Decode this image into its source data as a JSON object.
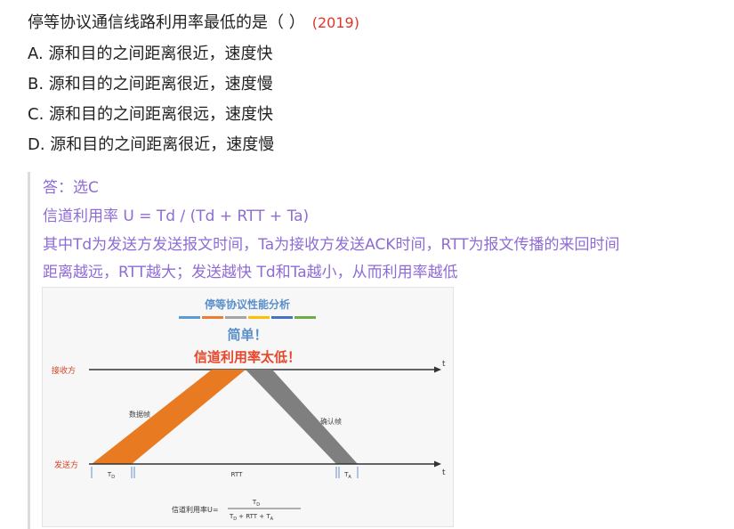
{
  "question": {
    "title": "停等协议通信线路利用率最低的是（ ）",
    "year": "(2019)",
    "options": [
      "A. 源和目的之间距离很近，速度快",
      "B. 源和目的之间距离很近，速度慢",
      "C. 源和目的之间距离很远，速度快",
      "D. 源和目的之间距离很近，速度慢"
    ]
  },
  "answer": {
    "line1": "答：选C",
    "line2": "信道利用率 U  = Td / (Td + RTT + Ta)",
    "line3": "其中Td为发送方发送报文时间，Ta为接收方发送ACK时间，RTT为报文传播的来回时间",
    "line4": "距离越远，RTT越大；发送越快 Td和Ta越小，从而利用率越低"
  },
  "figure": {
    "title": "停等协议性能分析",
    "subtitle1": "简单！",
    "subtitle2": "信道利用率太低！",
    "receiver_label": "接收方",
    "sender_label": "发送方",
    "axis_t": "t",
    "data_frame_label": "数据帧",
    "ack_frame_label": "确认帧",
    "td_label": "T",
    "td_sub": "D",
    "rtt_label": "RTT",
    "ta_label": "T",
    "ta_sub": "A",
    "formula_prefix": "信道利用率U=",
    "formula_num": "T",
    "formula_num_sub": "D",
    "formula_den_td": "T",
    "formula_den_td_sub": "D",
    "formula_den_rest1": "+   RTT  +  T",
    "formula_den_ta_sub": "A",
    "colors": {
      "accent_title": "#5b8fc9",
      "accent_red": "#e8462a",
      "data_frame": "#e87b22",
      "ack_frame": "#7f7f7f",
      "answer_text": "#8f6bd6"
    },
    "color_strip": [
      "#5b9bd5",
      "#ed7d31",
      "#a5a5a5",
      "#ffc000",
      "#4472c4",
      "#70ad47"
    ]
  }
}
